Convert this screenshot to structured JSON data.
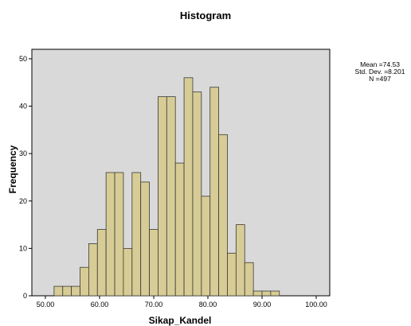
{
  "chart_data": {
    "type": "bar",
    "subtype": "histogram",
    "title": "Histogram",
    "xlabel": "Sikap_Kandel",
    "ylabel": "Frequency",
    "xlim": [
      47.5,
      102.5
    ],
    "ylim": [
      0,
      52
    ],
    "x_ticks": [
      {
        "value": 50,
        "label": "50.00"
      },
      {
        "value": 60,
        "label": "60.00"
      },
      {
        "value": 70,
        "label": "70.00"
      },
      {
        "value": 80,
        "label": "80.00"
      },
      {
        "value": 90,
        "label": "90.00"
      },
      {
        "value": 100,
        "label": "100.00"
      }
    ],
    "y_ticks": [
      {
        "value": 0,
        "label": "0"
      },
      {
        "value": 10,
        "label": "10"
      },
      {
        "value": 20,
        "label": "20"
      },
      {
        "value": 30,
        "label": "30"
      },
      {
        "value": 40,
        "label": "40"
      },
      {
        "value": 50,
        "label": "50"
      }
    ],
    "bin_width": 1.6,
    "bin_start": 51.6,
    "values": [
      2,
      2,
      2,
      6,
      11,
      14,
      26,
      26,
      10,
      26,
      24,
      14,
      42,
      42,
      28,
      46,
      43,
      21,
      44,
      34,
      9,
      15,
      7,
      1,
      1,
      1
    ],
    "stats": {
      "mean": "Mean =74.53",
      "std": "Std. Dev. =8.201",
      "n": "N =497"
    },
    "colors": {
      "plot_background": "#d9d9d9",
      "bar_fill": "#d7cc95",
      "bar_stroke": "#3a3a3a",
      "axis": "#000000"
    },
    "grid": false
  }
}
